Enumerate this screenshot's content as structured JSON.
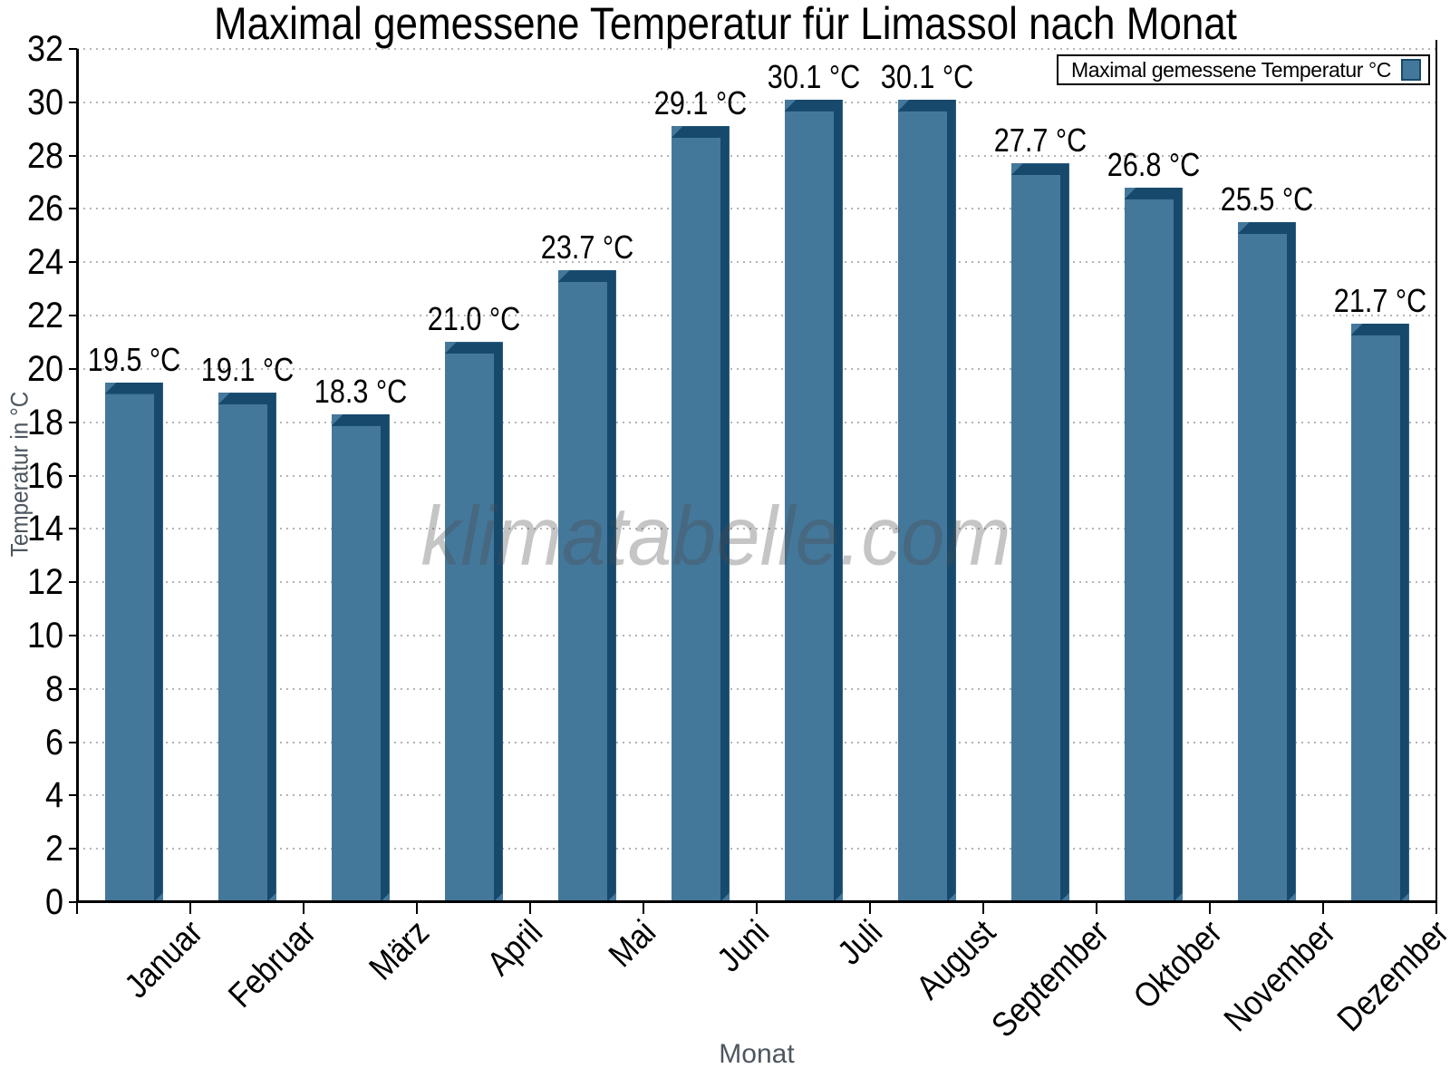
{
  "title": "Maximal gemessene Temperatur für Limassol nach Monat",
  "legend": {
    "label": "Maximal gemessene Temperatur °C"
  },
  "watermark": "klimatabelle.com",
  "axes": {
    "y_label": "Temperatur in °C",
    "x_label": "Monat"
  },
  "colors": {
    "bar_face": "#44789B",
    "bar_edge": "#17496C",
    "grid": "#b4b4b4",
    "axis": "#000000",
    "axis_title": "#4d565f",
    "watermark": "rgba(75,75,75,0.32)"
  },
  "chart_data": {
    "type": "bar",
    "title": "Maximal gemessene Temperatur für Limassol nach Monat",
    "xlabel": "Monat",
    "ylabel": "Temperatur in °C",
    "categories": [
      "Januar",
      "Februar",
      "März",
      "April",
      "Mai",
      "Juni",
      "Juli",
      "August",
      "September",
      "Oktober",
      "November",
      "Dezember"
    ],
    "values": [
      19.5,
      19.1,
      18.3,
      21.0,
      23.7,
      29.1,
      30.1,
      30.1,
      27.7,
      26.8,
      25.5,
      21.7
    ],
    "value_labels": [
      "19.5 °C",
      "19.1 °C",
      "18.3 °C",
      "21.0 °C",
      "23.7 °C",
      "29.1 °C",
      "30.1 °C",
      "30.1 °C",
      "27.7 °C",
      "26.8 °C",
      "25.5 °C",
      "21.7 °C"
    ],
    "series_name": "Maximal gemessene Temperatur °C",
    "ylim": [
      0,
      32
    ],
    "y_ticks": [
      0,
      2,
      4,
      6,
      8,
      10,
      12,
      14,
      16,
      18,
      20,
      22,
      24,
      26,
      28,
      30,
      32
    ],
    "grid": true,
    "legend_position": "top-right"
  }
}
